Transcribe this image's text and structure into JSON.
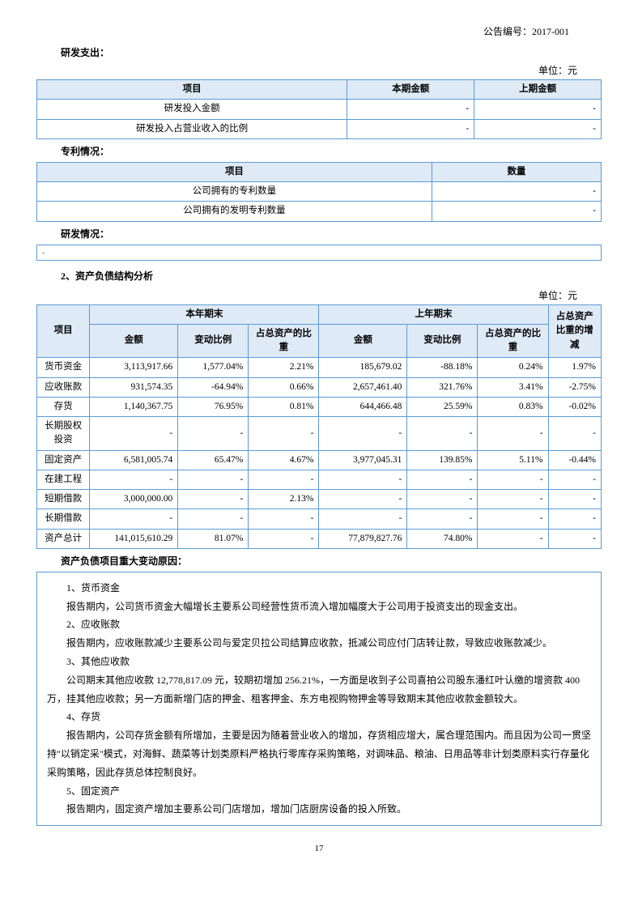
{
  "header": {
    "announce": "公告编号：2017-001"
  },
  "rd": {
    "title": "研发支出：",
    "unit": "单位：元",
    "cols": [
      "项目",
      "本期金额",
      "上期金额"
    ],
    "rows": [
      {
        "label": "研发投入金额",
        "cur": "-",
        "prev": "-"
      },
      {
        "label": "研发投入占营业收入的比例",
        "cur": "-",
        "prev": "-"
      }
    ]
  },
  "patent": {
    "title": "专利情况：",
    "cols": [
      "项目",
      "数量"
    ],
    "rows": [
      {
        "label": "公司拥有的专利数量",
        "val": "-"
      },
      {
        "label": "公司拥有的发明专利数量",
        "val": "-"
      }
    ]
  },
  "rdStatus": {
    "title": "研发情况：",
    "content": "-"
  },
  "assets": {
    "section": "2、资产负债结构分析",
    "unit": "单位：元",
    "h1": [
      "项目",
      "本年期末",
      "上年期末",
      "占总资产比重的增减"
    ],
    "h2": [
      "金额",
      "变动比例",
      "占总资产的比重",
      "金额",
      "变动比例",
      "占总资产的比重"
    ],
    "rows": [
      {
        "c0": "货币资金",
        "c1": "3,113,917.66",
        "c2": "1,577.04%",
        "c3": "2.21%",
        "c4": "185,679.02",
        "c5": "-88.18%",
        "c6": "0.24%",
        "c7": "1.97%"
      },
      {
        "c0": "应收账款",
        "c1": "931,574.35",
        "c2": "-64.94%",
        "c3": "0.66%",
        "c4": "2,657,461.40",
        "c5": "321.76%",
        "c6": "3.41%",
        "c7": "-2.75%"
      },
      {
        "c0": "存货",
        "c1": "1,140,367.75",
        "c2": "76.95%",
        "c3": "0.81%",
        "c4": "644,466.48",
        "c5": "25.59%",
        "c6": "0.83%",
        "c7": "-0.02%"
      },
      {
        "c0": "长期股权投资",
        "c1": "-",
        "c2": "-",
        "c3": "-",
        "c4": "-",
        "c5": "-",
        "c6": "-",
        "c7": "-"
      },
      {
        "c0": "固定资产",
        "c1": "6,581,005.74",
        "c2": "65.47%",
        "c3": "4.67%",
        "c4": "3,977,045.31",
        "c5": "139.85%",
        "c6": "5.11%",
        "c7": "-0.44%"
      },
      {
        "c0": "在建工程",
        "c1": "-",
        "c2": "-",
        "c3": "-",
        "c4": "-",
        "c5": "-",
        "c6": "-",
        "c7": "-"
      },
      {
        "c0": "短期借款",
        "c1": "3,000,000.00",
        "c2": "-",
        "c3": "2.13%",
        "c4": "-",
        "c5": "-",
        "c6": "-",
        "c7": "-"
      },
      {
        "c0": "长期借款",
        "c1": "-",
        "c2": "-",
        "c3": "-",
        "c4": "-",
        "c5": "-",
        "c6": "-",
        "c7": "-"
      },
      {
        "c0": "资产总计",
        "c1": "141,015,610.29",
        "c2": "81.07%",
        "c3": "-",
        "c4": "77,879,827.76",
        "c5": "74.80%",
        "c6": "-",
        "c7": "-"
      }
    ]
  },
  "reason": {
    "title": "资产负债项目重大变动原因：",
    "items": [
      {
        "t": "1、货币资金",
        "p": [
          "报告期内，公司货币资金大幅增长主要系公司经营性货币流入增加幅度大于公司用于投资支出的现金支出。"
        ]
      },
      {
        "t": "2、应收账款",
        "p": [
          "报告期内，应收账款减少主要系公司与爱定贝拉公司结算应收款，抵减公司应付门店转让款，导致应收账款减少。"
        ]
      },
      {
        "t": "3、其他应收款",
        "p": [
          "公司期末其他应收款 12,778,817.09 元，较期初增加 256.21%，一方面是收到子公司喜拍公司股东潘红叶认缴的增资款 400 万，挂其他应收款；另一方面新增门店的押金、租客押金、东方电视购物押金等导致期末其他应收款金额较大。"
        ]
      },
      {
        "t": "4、存货",
        "p": [
          "报告期内，公司存货金额有所增加，主要是因为随着营业收入的增加，存货相应增大，属合理范围内。而且因为公司一贯坚持\"以销定采\"模式，对海鲜、蔬菜等计划类原料严格执行零库存采购策略，对调味品、粮油、日用品等非计划类原料实行存量化采购策略，因此存货总体控制良好。"
        ]
      },
      {
        "t": "5、固定资产",
        "p": [
          "报告期内，固定资产增加主要系公司门店增加，增加门店厨房设备的投入所致。"
        ]
      }
    ]
  },
  "pageNum": "17"
}
